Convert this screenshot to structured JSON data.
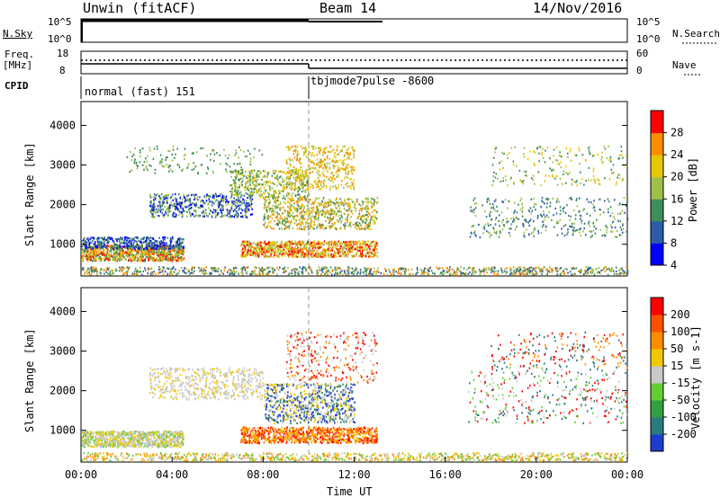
{
  "header": {
    "title": "Unwin (fitACF)",
    "beam": "Beam 14",
    "date": "14/Nov/2016"
  },
  "top_panels": {
    "nsky_label": "N.Sky",
    "nsky_ticks": [
      "10^5",
      "10^0"
    ],
    "nsearch_label": "N.Search",
    "nsearch_ticks": [
      "10^5",
      "10^0"
    ],
    "freq_label": "Freq.",
    "freq_unit": "[MHz]",
    "freq_ticks": [
      "18",
      "8"
    ],
    "nave_label": "Nave",
    "nave_ticks": [
      "60",
      "0"
    ],
    "cpid_label": "CPID",
    "cpid_segments": [
      "normal (fast) 151",
      "tbjmode7pulse -8600"
    ]
  },
  "chart_data": [
    {
      "type": "heatmap",
      "name": "power",
      "ylabel": "Slant Range [km]",
      "yticks": [
        "4000",
        "3000",
        "2000",
        "1000"
      ],
      "ylim": [
        200,
        4600
      ],
      "colorbar_label": "Power [dB]",
      "colorbar_ticks": [
        "28",
        "24",
        "20",
        "16",
        "12",
        "8",
        "4"
      ],
      "colors": [
        "#0000ff",
        "#2e5da8",
        "#3f8d5a",
        "#9ec04a",
        "#e6c800",
        "#ff8c00",
        "#ff0000"
      ]
    },
    {
      "type": "heatmap",
      "name": "velocity",
      "ylabel": "Slant Range [km]",
      "yticks": [
        "4000",
        "3000",
        "2000",
        "1000"
      ],
      "ylim": [
        200,
        4600
      ],
      "colorbar_label": "Velocity [m s-1]",
      "colorbar_ticks": [
        "200",
        "100",
        "50",
        "15",
        "-15",
        "-50",
        "-100",
        "-200"
      ],
      "colors": [
        "#1c3cd0",
        "#2a7a80",
        "#30a040",
        "#66cc33",
        "#c8c8c8",
        "#f0c800",
        "#ff8c00",
        "#ff5000",
        "#ff0000"
      ]
    }
  ],
  "xaxis": {
    "label": "Time UT",
    "ticks": [
      "00:00",
      "04:00",
      "08:00",
      "12:00",
      "16:00",
      "20:00",
      "00:00"
    ]
  }
}
